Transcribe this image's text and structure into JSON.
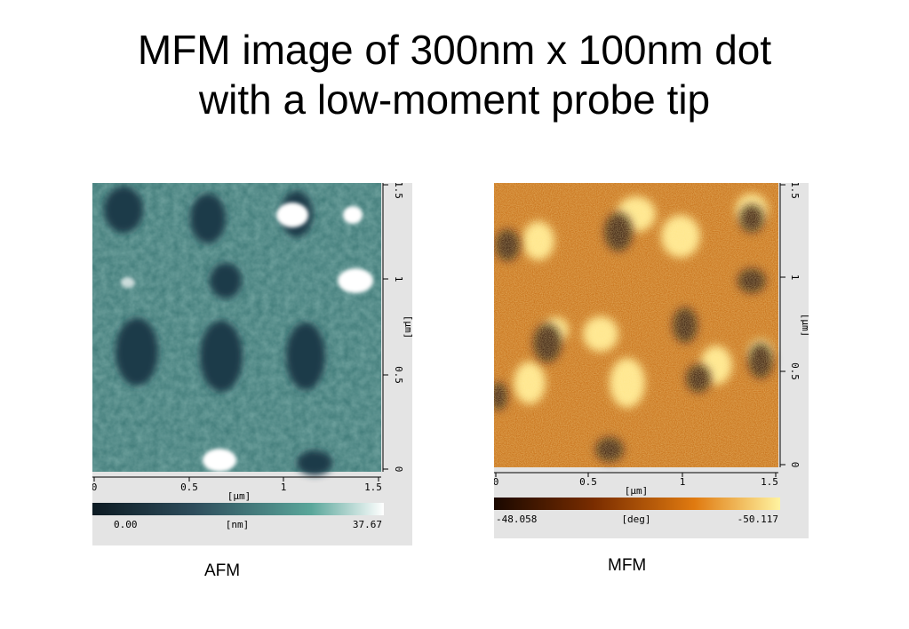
{
  "slide": {
    "title_line1": "MFM image of 300nm x 100nm dot",
    "title_line2": "with a low-moment probe tip"
  },
  "afm": {
    "caption": "AFM",
    "x_ticks": [
      "0",
      "0.5",
      "1",
      "1.5"
    ],
    "y_ticks": [
      "0",
      "0.5",
      "1",
      "1.5"
    ],
    "x_unit": "[μm]",
    "y_unit": "[μm]",
    "colorbar_min": "0.00",
    "colorbar_unit": "[nm]",
    "colorbar_max": "37.67",
    "colors": [
      "#0c1a22",
      "#2e4d5c",
      "#5aa69a",
      "#ffffff"
    ]
  },
  "mfm": {
    "caption": "MFM",
    "x_ticks": [
      "0",
      "0.5",
      "1",
      "1.5"
    ],
    "y_ticks": [
      "0",
      "0.5",
      "1",
      "1.5"
    ],
    "x_unit": "[μm]",
    "y_unit": "[μm]",
    "colorbar_min": "-48.058",
    "colorbar_unit": "[deg]",
    "colorbar_max": "-50.117",
    "colors": [
      "#1a0800",
      "#7a2d00",
      "#e07a10",
      "#fff3a0"
    ]
  }
}
